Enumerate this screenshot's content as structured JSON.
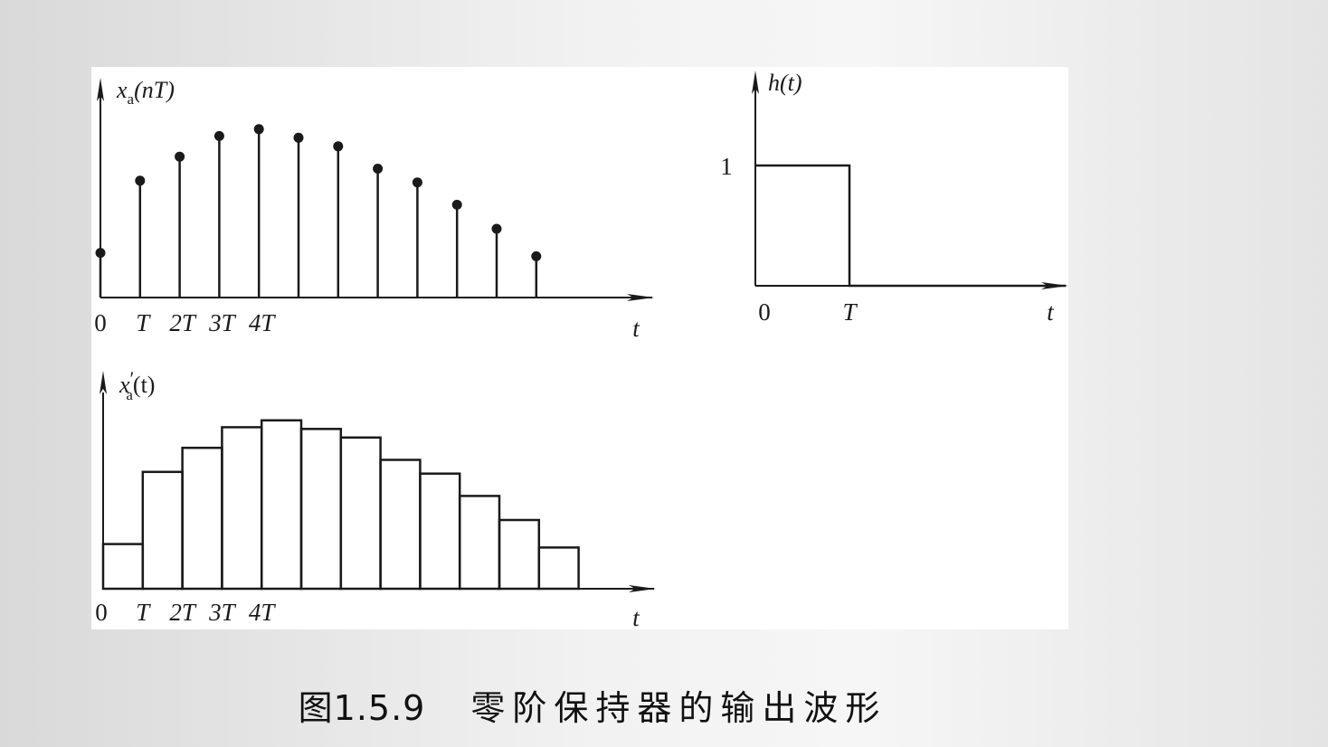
{
  "chart_data": [
    {
      "type": "stem",
      "ylabel_var": "x",
      "ylabel_sub": "a",
      "ylabel_arg": "(nT)",
      "xlabel": "t",
      "xtick_labels": [
        {
          "n": 0,
          "label": "0",
          "italic": false
        },
        {
          "n": 1,
          "label": "T",
          "italic": true
        },
        {
          "n": 2,
          "label": "2T",
          "italic": true
        },
        {
          "n": 3,
          "label": "3T",
          "italic": true
        },
        {
          "n": 4,
          "label": "4T",
          "italic": true
        }
      ],
      "n": [
        0,
        1,
        2,
        3,
        4,
        5,
        6,
        7,
        8,
        9,
        10,
        11
      ],
      "values": [
        0.26,
        0.68,
        0.82,
        0.94,
        0.98,
        0.93,
        0.88,
        0.75,
        0.67,
        0.54,
        0.4,
        0.24
      ]
    },
    {
      "type": "step",
      "ylabel_var": "x",
      "ylabel_prime": "′",
      "ylabel_sub": "a",
      "ylabel_arg": "(t)",
      "xlabel": "t",
      "xtick_labels": [
        {
          "n": 0,
          "label": "0",
          "italic": false
        },
        {
          "n": 1,
          "label": "T",
          "italic": true
        },
        {
          "n": 2,
          "label": "2T",
          "italic": true
        },
        {
          "n": 3,
          "label": "3T",
          "italic": true
        },
        {
          "n": 4,
          "label": "4T",
          "italic": true
        }
      ],
      "n": [
        0,
        1,
        2,
        3,
        4,
        5,
        6,
        7,
        8,
        9,
        10,
        11
      ],
      "values": [
        0.26,
        0.68,
        0.82,
        0.94,
        0.98,
        0.93,
        0.88,
        0.75,
        0.67,
        0.54,
        0.4,
        0.24
      ]
    },
    {
      "type": "line",
      "ylabel": "h(t)",
      "ylabel_var": "h",
      "ylabel_arg": "(t)",
      "xlabel": "t",
      "x": [
        0,
        1,
        1,
        3.3
      ],
      "y": [
        1,
        1,
        0,
        0
      ],
      "ytick_label": "1",
      "xtick_labels": [
        {
          "x": 0,
          "label": "0",
          "italic": false
        },
        {
          "x": 1,
          "label": "T",
          "italic": true
        }
      ]
    }
  ],
  "caption": {
    "number": "图1.5.9",
    "text": "零阶保持器的输出波形"
  }
}
